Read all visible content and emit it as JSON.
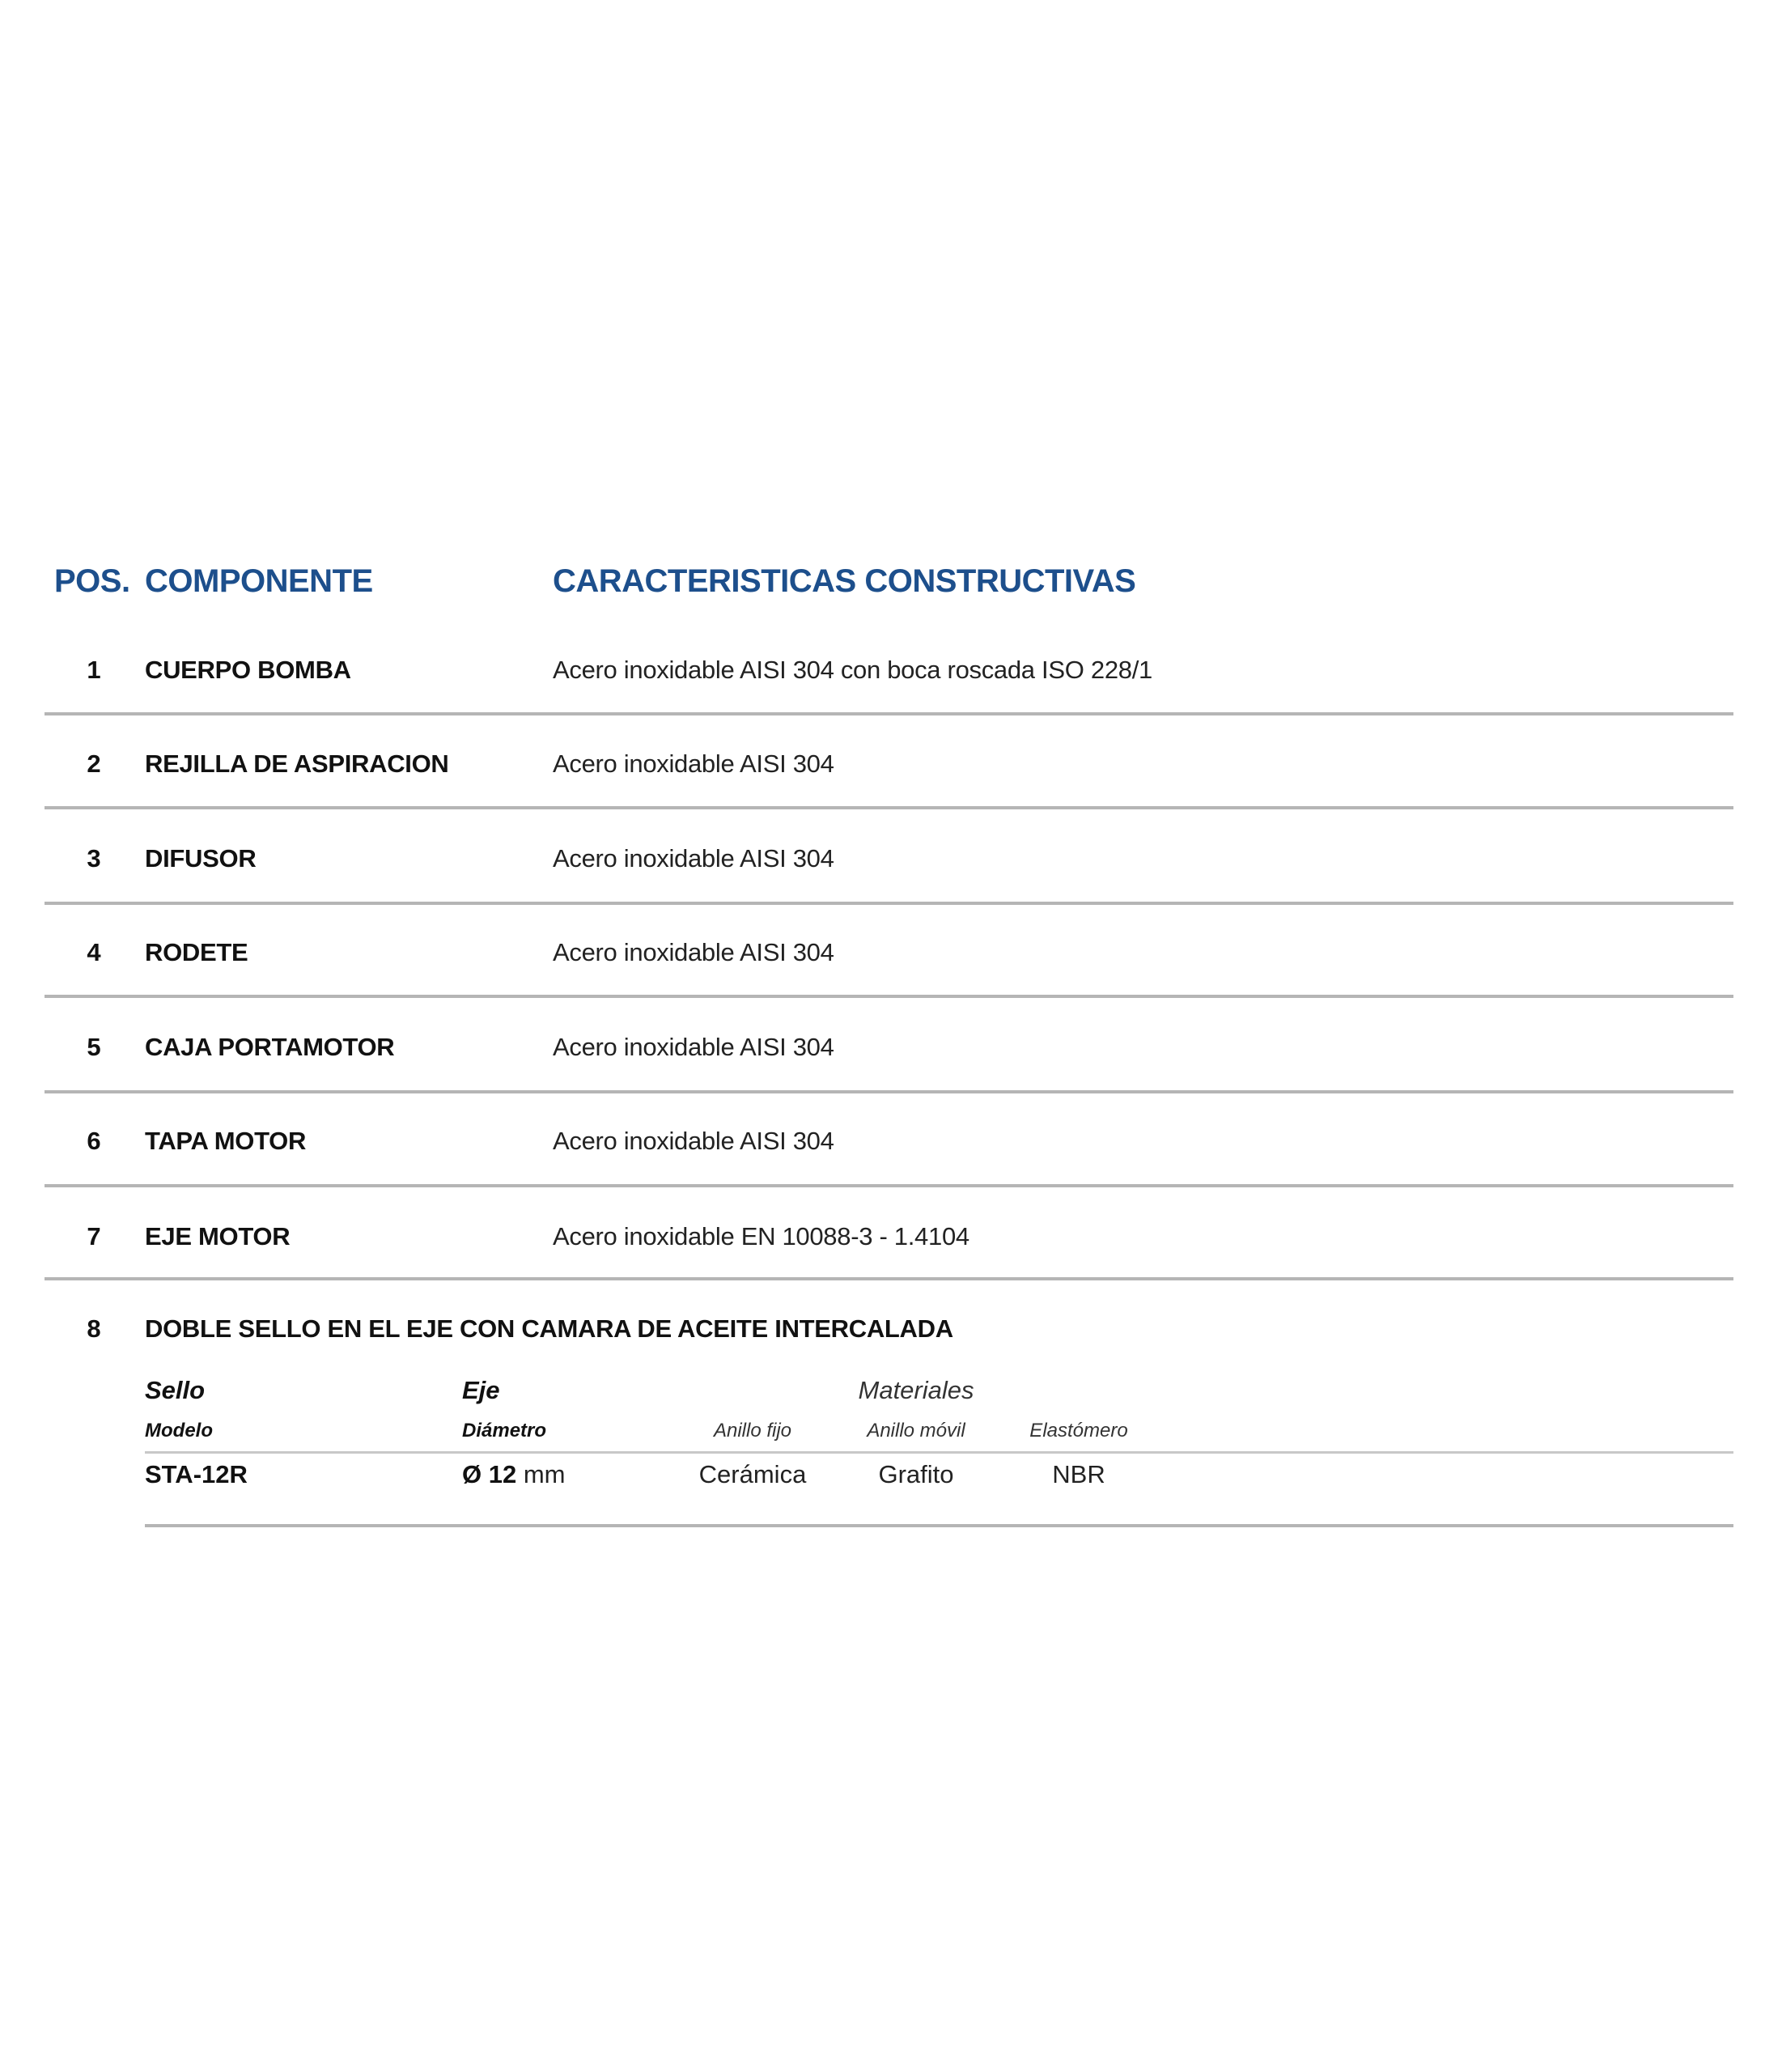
{
  "header": {
    "pos": "POS.",
    "component": "COMPONENTE",
    "characteristics": "CARACTERISTICAS CONSTRUCTIVAS"
  },
  "rows": [
    {
      "pos": "1",
      "component": "CUERPO BOMBA",
      "characteristics": "Acero inoxidable AISI 304 con boca roscada ISO 228/1"
    },
    {
      "pos": "2",
      "component": "REJILLA DE ASPIRACION",
      "characteristics": "Acero inoxidable AISI 304"
    },
    {
      "pos": "3",
      "component": "DIFUSOR",
      "characteristics": "Acero inoxidable AISI 304"
    },
    {
      "pos": "4",
      "component": "RODETE",
      "characteristics": "Acero inoxidable AISI 304"
    },
    {
      "pos": "5",
      "component": "CAJA PORTAMOTOR",
      "characteristics": "Acero inoxidable AISI 304"
    },
    {
      "pos": "6",
      "component": "TAPA MOTOR",
      "characteristics": "Acero inoxidable AISI 304"
    },
    {
      "pos": "7",
      "component": "EJE MOTOR",
      "characteristics": "Acero inoxidable EN 10088-3 - 1.4104"
    }
  ],
  "seal": {
    "pos": "8",
    "title": "DOBLE SELLO EN EL EJE CON CAMARA DE ACEITE INTERCALADA",
    "group_headers": {
      "sello": "Sello",
      "eje": "Eje",
      "materiales": "Materiales"
    },
    "columns": {
      "modelo": "Modelo",
      "diametro": "Diámetro",
      "anillo_fijo": "Anillo fijo",
      "anillo_movil": "Anillo móvil",
      "elastomero": "Elastómero"
    },
    "values": {
      "modelo": "STA-12R",
      "diametro_symbol": "Ø 12",
      "diametro_unit": "mm",
      "anillo_fijo": "Cerámica",
      "anillo_movil": "Grafito",
      "elastomero": "NBR"
    }
  },
  "colors": {
    "header": "#1d4f8c",
    "rule": "#b5b5b5"
  }
}
